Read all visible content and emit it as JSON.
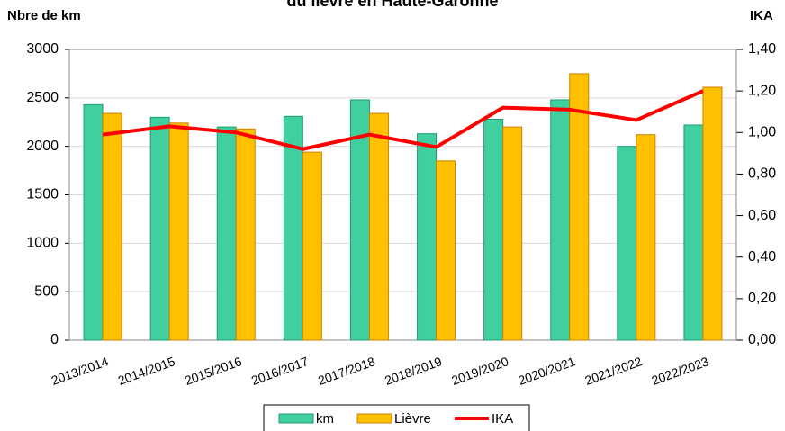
{
  "chart_data": {
    "type": "bar",
    "title": "du lièvre en Haute-Garonne",
    "y_label": "Nbre de km",
    "y2_label": "IKA",
    "categories": [
      "2013/2014",
      "2014/2015",
      "2015/2016",
      "2016/2017",
      "2017/2018",
      "2018/2019",
      "2019/2020",
      "2020/2021",
      "2021/2022",
      "2022/2023"
    ],
    "series": [
      {
        "name": "km",
        "type": "bar",
        "color": "#40d0a0",
        "values": [
          2430,
          2300,
          2200,
          2310,
          2480,
          2130,
          2280,
          2480,
          2000,
          2220
        ]
      },
      {
        "name": "Lièvre",
        "type": "bar",
        "color": "#ffc000",
        "values": [
          2340,
          2240,
          2180,
          1940,
          2340,
          1850,
          2200,
          2750,
          2120,
          2610
        ]
      },
      {
        "name": "IKA",
        "type": "line",
        "axis": "y2",
        "color": "#ff0000",
        "values": [
          0.99,
          1.03,
          1.0,
          0.92,
          0.99,
          0.93,
          1.12,
          1.11,
          1.06,
          1.2
        ]
      }
    ],
    "ylim": [
      0,
      3000
    ],
    "yticks": [
      0,
      500,
      1000,
      1500,
      2000,
      2500,
      3000
    ],
    "y2lim": [
      0,
      1.4
    ],
    "y2ticks": [
      {
        "value": 0,
        "label": "0,00"
      },
      {
        "value": 0.2,
        "label": "0,20"
      },
      {
        "value": 0.4,
        "label": "0,40"
      },
      {
        "value": 0.6,
        "label": "0,60"
      },
      {
        "value": 0.8,
        "label": "0,80"
      },
      {
        "value": 1.0,
        "label": "1,00"
      },
      {
        "value": 1.2,
        "label": "1,20"
      },
      {
        "value": 1.4,
        "label": "1,40"
      }
    ],
    "grid": true
  }
}
